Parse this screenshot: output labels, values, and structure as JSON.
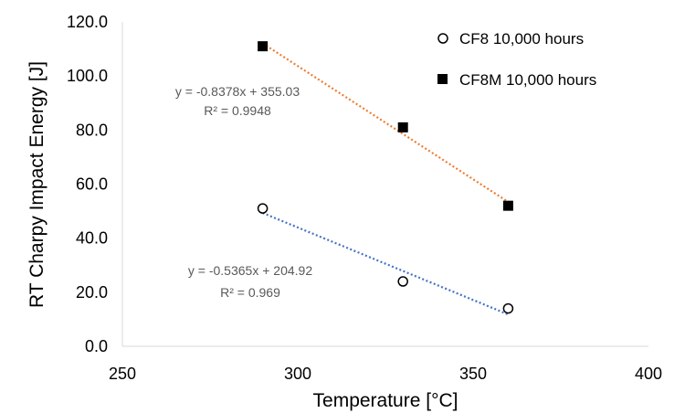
{
  "chart_data": {
    "type": "scatter",
    "xlabel": "Temperature [°C]",
    "ylabel": "RT Charpy Impact Energy [J]",
    "xlim": [
      250,
      400
    ],
    "ylim": [
      0,
      120
    ],
    "x_ticks": [
      "250",
      "300",
      "350",
      "400"
    ],
    "y_ticks": [
      "0.0",
      "20.0",
      "40.0",
      "60.0",
      "80.0",
      "100.0",
      "120.0"
    ],
    "legend_position": "top-right",
    "grid": false,
    "series": [
      {
        "name": "CF8 10,000 hours",
        "marker": "open-circle",
        "x": [
          290,
          330,
          360
        ],
        "y": [
          51.0,
          24.0,
          14.0
        ],
        "trendline": {
          "slope": -0.5365,
          "intercept": 204.92,
          "color": "#4472C4",
          "equation": "y = -0.5365x + 204.92",
          "r2": "R² = 0.969"
        }
      },
      {
        "name": "CF8M 10,000 hours",
        "marker": "filled-square",
        "x": [
          290,
          330,
          360
        ],
        "y": [
          111.0,
          81.0,
          52.0
        ],
        "trendline": {
          "slope": -0.8378,
          "intercept": 355.03,
          "color": "#ED7D31",
          "equation": "y = -0.8378x + 355.03",
          "r2": "R² = 0.9948"
        }
      }
    ]
  }
}
